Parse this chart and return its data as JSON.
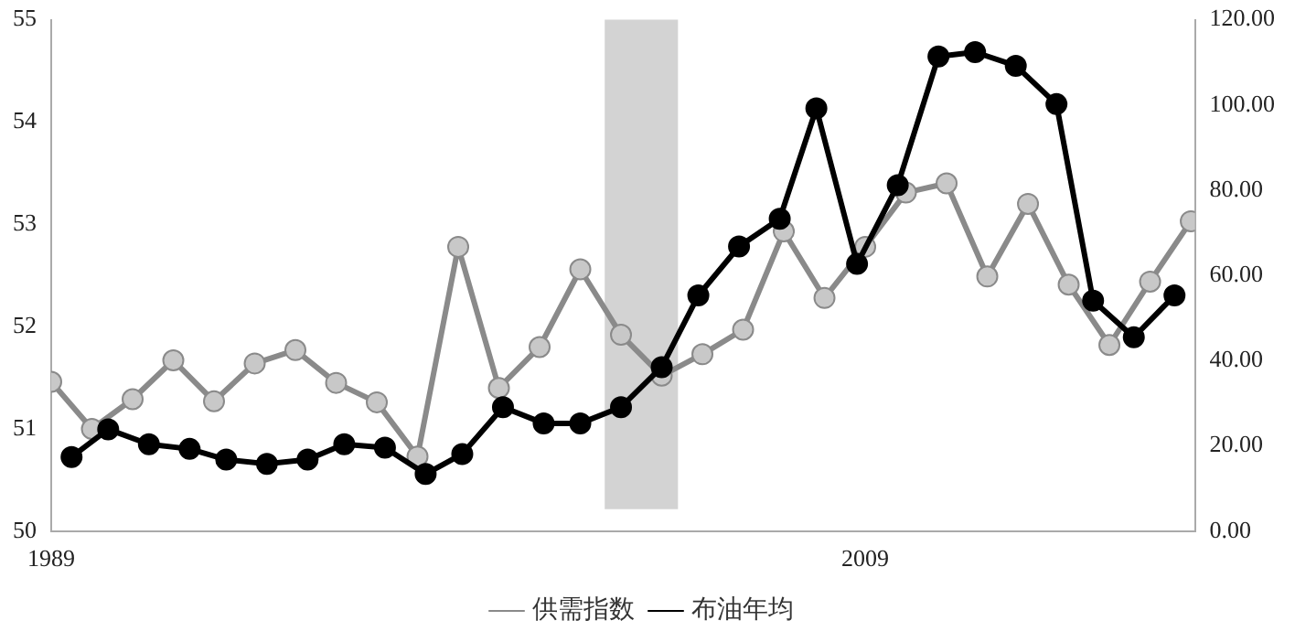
{
  "chart_data": {
    "type": "line",
    "x": [
      1989,
      1990,
      1991,
      1992,
      1993,
      1994,
      1995,
      1996,
      1997,
      1998,
      1999,
      2000,
      2001,
      2002,
      2003,
      2004,
      2005,
      2006,
      2007,
      2008,
      2009,
      2010,
      2011,
      2012,
      2013,
      2014,
      2015,
      2016,
      2017
    ],
    "series": [
      {
        "name": "供需指数",
        "color": "#c8c8c8",
        "values": [
          51.46,
          51.0,
          51.29,
          51.67,
          51.27,
          51.64,
          51.77,
          51.45,
          51.26,
          50.73,
          52.78,
          51.4,
          51.8,
          52.56,
          51.92,
          51.52,
          51.73,
          51.97,
          52.93,
          52.28,
          52.78,
          53.31,
          53.4,
          52.49,
          53.2,
          52.41,
          51.82,
          52.44,
          53.03
        ]
      },
      {
        "name": "布油年均",
        "color": "#000000",
        "axis": "y2",
        "x": [
          1989.5,
          1990.4,
          1991.4,
          1992.4,
          1993.3,
          1994.3,
          1995.3,
          1996.2,
          1997.2,
          1998.2,
          1999.1,
          2000.1,
          2001.1,
          2002.0,
          2003.0,
          2004.0,
          2004.9,
          2005.9,
          2006.9,
          2007.8,
          2008.8,
          2009.8,
          2010.8,
          2011.7,
          2012.7,
          2013.7,
          2014.6,
          2015.6,
          2016.6
        ],
        "values": [
          17.4,
          23.9,
          20.4,
          19.3,
          16.8,
          15.8,
          16.8,
          20.4,
          19.6,
          13.4,
          18.1,
          29.1,
          25.3,
          25.3,
          29.1,
          38.5,
          55.3,
          66.8,
          73.3,
          99.2,
          62.7,
          81.2,
          111.4,
          112.4,
          109.2,
          100.2,
          54.1,
          45.5,
          55.3
        ]
      }
    ],
    "xlim": [
      1989,
      2017.1
    ],
    "xticks": [
      1989,
      2009
    ],
    "ylim": [
      50,
      55
    ],
    "yticks": [
      50,
      51,
      52,
      53,
      54,
      55
    ],
    "y2lim": [
      0,
      120
    ],
    "y2ticks": [
      {
        "value": 0,
        "label": "0.00"
      },
      {
        "value": 20,
        "label": "20.00"
      },
      {
        "value": 40,
        "label": "40.00"
      },
      {
        "value": 60,
        "label": "60.00"
      },
      {
        "value": 80,
        "label": "80.00"
      },
      {
        "value": 100,
        "label": "100.00"
      },
      {
        "value": 120,
        "label": "120.00"
      }
    ],
    "bands": [
      {
        "axis": "x",
        "from": 2002.6,
        "to": 2004.4,
        "color": "#d3d3d3"
      }
    ],
    "marker": "circle",
    "line_style": "solid",
    "grid": false,
    "legend": "bottom"
  }
}
